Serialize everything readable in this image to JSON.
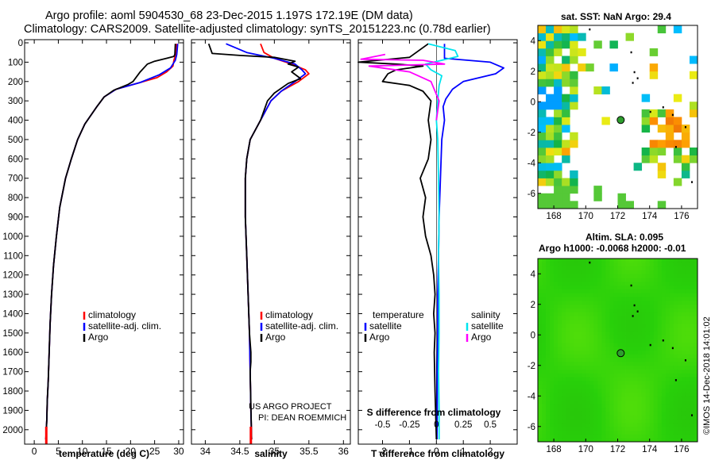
{
  "title_line1": "Argo profile: aoml 5904530_68 23-Dec-2015 1.197S 172.19E (DM data)",
  "title_line2": "Climatology: CARS2009. Satellite-adjusted climatology: synTS_20151223.nc (0.78d earlier)",
  "sst_map_title": "sat. SST: NaN Argo: 29.4",
  "sla_map_title_1": "Altim. SLA: 0.095",
  "sla_map_title_2": "Argo h1000: -0.0068 h2000: -0.01",
  "credit_1": "US ARGO PROJECT",
  "credit_2": "PI: DEAN ROEMMICH",
  "timestamp": "©IMOS 14-Dec-2018 14:01:02",
  "colors": {
    "climatology": "#ff0000",
    "satellite": "#0000ff",
    "argo": "#000000",
    "salinity_satellite": "#00e5ee",
    "salinity_argo": "#ff00ff",
    "profile_marker": "#2e9e2e"
  },
  "chart_data": [
    {
      "type": "line",
      "xlabel": "temperature (deg C)",
      "xlim": [
        -2,
        31
      ],
      "xticks": [
        0,
        5,
        10,
        15,
        20,
        25,
        30
      ],
      "ylim": [
        0,
        2050
      ],
      "yticks": [
        0,
        100,
        200,
        300,
        400,
        500,
        600,
        700,
        800,
        900,
        1000,
        1100,
        1200,
        1300,
        1400,
        1500,
        1600,
        1700,
        1800,
        1900,
        2000
      ],
      "legend": [
        "climatology",
        "satellite-adj. clim.",
        "Argo"
      ],
      "series": [
        {
          "name": "climatology",
          "color": "#ff0000",
          "x": [
            29.6,
            29.4,
            29.0,
            28.8,
            27.5,
            25.5,
            22.0,
            17.0,
            14.5,
            13.0,
            10.5,
            9.0,
            7.7,
            6.5,
            5.3,
            4.6,
            4.0,
            3.6,
            3.3,
            3.1,
            2.9,
            2.7,
            2.6,
            2.5,
            2.4
          ],
          "y": [
            5,
            60,
            90,
            120,
            150,
            180,
            205,
            240,
            280,
            330,
            420,
            500,
            600,
            700,
            850,
            1000,
            1150,
            1300,
            1450,
            1600,
            1750,
            1850,
            1950,
            2000,
            2050
          ]
        },
        {
          "name": "satellite-adj. clim.",
          "color": "#0000ff",
          "x": [
            29.8,
            29.6,
            29.3,
            28.3,
            26.0,
            22.0,
            17.0,
            14.5,
            13.0,
            10.5,
            9.0,
            7.7,
            6.5,
            5.3,
            4.6,
            4.0,
            3.6,
            3.3,
            3.1,
            2.9,
            2.7,
            2.6,
            2.5,
            2.4
          ],
          "y": [
            5,
            60,
            90,
            130,
            165,
            205,
            240,
            280,
            330,
            420,
            500,
            600,
            700,
            850,
            1000,
            1150,
            1300,
            1450,
            1600,
            1750,
            1850,
            1950,
            2000,
            2050
          ]
        },
        {
          "name": "Argo",
          "color": "#000000",
          "x": [
            29.3,
            29.2,
            29.0,
            27.5,
            25.0,
            23.5,
            22.0,
            20.5,
            19.5,
            18.5,
            16.5,
            14.5,
            13.0,
            10.5,
            9.0,
            7.7,
            6.5,
            5.3,
            4.6,
            4.0,
            3.6,
            3.3,
            3.1,
            2.9,
            2.7,
            2.6,
            2.5,
            2.4
          ],
          "y": [
            5,
            60,
            70,
            80,
            95,
            110,
            150,
            200,
            215,
            225,
            245,
            280,
            330,
            420,
            500,
            600,
            700,
            850,
            1000,
            1150,
            1300,
            1450,
            1600,
            1750,
            1850,
            1950,
            2000,
            2050
          ]
        }
      ]
    },
    {
      "type": "line",
      "xlabel": "salinity",
      "xlim": [
        33.8,
        36.1
      ],
      "xticks": [
        34,
        34.5,
        35,
        35.5,
        36
      ],
      "ylim": [
        0,
        2050
      ],
      "legend": [
        "climatology",
        "satellite-adj. clim.",
        "Argo"
      ],
      "series": [
        {
          "name": "climatology",
          "color": "#ff0000",
          "x": [
            34.8,
            34.85,
            35.0,
            35.25,
            35.45,
            35.5,
            35.35,
            35.1,
            34.95,
            34.8,
            34.65,
            34.6,
            34.58,
            34.58,
            34.6,
            34.62,
            34.64,
            34.65,
            34.66,
            34.67
          ],
          "y": [
            5,
            50,
            80,
            110,
            140,
            160,
            200,
            250,
            300,
            400,
            500,
            600,
            700,
            900,
            1100,
            1300,
            1500,
            1700,
            1900,
            2050
          ]
        },
        {
          "name": "satellite-adj. clim.",
          "color": "#0000ff",
          "x": [
            34.3,
            34.6,
            35.0,
            35.3,
            35.4,
            35.45,
            35.3,
            35.1,
            34.95,
            34.8,
            34.65,
            34.6,
            34.58,
            34.58,
            34.6,
            34.62,
            34.64,
            34.65,
            34.66,
            34.67
          ],
          "y": [
            5,
            50,
            80,
            110,
            140,
            160,
            200,
            250,
            300,
            400,
            500,
            600,
            700,
            900,
            1100,
            1300,
            1500,
            1700,
            1900,
            2050
          ]
        },
        {
          "name": "Argo",
          "color": "#000000",
          "x": [
            34.05,
            34.1,
            34.5,
            35.0,
            35.3,
            35.2,
            35.35,
            35.25,
            35.38,
            35.2,
            35.0,
            34.9,
            34.8,
            34.65,
            34.6,
            34.58,
            34.58,
            34.6,
            34.62,
            34.64,
            34.66,
            34.66,
            34.65,
            34.67
          ],
          "y": [
            5,
            55,
            65,
            75,
            95,
            110,
            125,
            150,
            185,
            210,
            260,
            300,
            400,
            500,
            600,
            700,
            900,
            1100,
            1300,
            1500,
            1600,
            1650,
            1700,
            2050
          ]
        }
      ]
    },
    {
      "type": "line",
      "xlabel": "T difference from climatology",
      "xlabel_top": "S difference from climatology",
      "xlim": [
        -2.9,
        3.0
      ],
      "xticks": [
        -2,
        -1,
        0,
        1,
        2
      ],
      "xticks_top": [
        "-0.5",
        "-0.25",
        "0",
        "0.25",
        "0.5"
      ],
      "ylim": [
        0,
        2050
      ],
      "legend_temperature": {
        "heading": "temperature",
        "items": [
          "satellite",
          "Argo"
        ]
      },
      "legend_salinity": {
        "heading": "salinity",
        "items": [
          "satellite",
          "Argo"
        ]
      },
      "series": [
        {
          "name": "temperature satellite",
          "color": "#0000ff",
          "x": [
            0.3,
            0.3,
            2.0,
            2.5,
            2.2,
            1.0,
            0.6,
            0.35,
            0.25,
            0.3,
            0.2,
            0.15,
            0.1,
            0.08,
            0.05,
            0.05,
            0.04,
            0.03,
            0.03,
            0.02
          ],
          "y": [
            5,
            80,
            100,
            130,
            160,
            200,
            240,
            290,
            330,
            400,
            500,
            700,
            900,
            1100,
            1300,
            1500,
            1600,
            1700,
            1900,
            2050
          ]
        },
        {
          "name": "temperature Argo",
          "color": "#000000",
          "x": [
            -0.3,
            -1.0,
            -2.9,
            -1.5,
            -0.5,
            -1.5,
            -1.8,
            -2.0,
            -1.0,
            -0.5,
            -0.2,
            -0.3,
            -0.2,
            -0.3,
            -0.6,
            -0.4,
            -0.5,
            -0.4,
            -0.2,
            -0.1,
            -0.05,
            -0.1,
            -0.05,
            -0.08,
            -0.05,
            0.0
          ],
          "y": [
            5,
            75,
            100,
            110,
            120,
            140,
            160,
            200,
            220,
            250,
            300,
            400,
            500,
            600,
            700,
            800,
            900,
            1000,
            1100,
            1200,
            1300,
            1400,
            1500,
            1600,
            1800,
            2050
          ]
        },
        {
          "name": "salinity satellite",
          "color": "#00e5ee",
          "x": [
            -0.3,
            0.7,
            0.8,
            0.2,
            -0.4,
            -0.2,
            0.2,
            0.1,
            0.05,
            0.0,
            0.05,
            0.08,
            0.1,
            0.08,
            0.1,
            0.1,
            0.08,
            0.1,
            0.1
          ],
          "y": [
            5,
            40,
            70,
            90,
            110,
            140,
            170,
            220,
            300,
            400,
            500,
            700,
            900,
            1100,
            1300,
            1500,
            1700,
            1900,
            2050
          ]
        },
        {
          "name": "salinity Argo",
          "color": "#ff00ff",
          "x": [
            -1.9,
            -2.8,
            -0.5,
            0.3,
            -2.5,
            -1.0,
            -0.2,
            0.1,
            0.0
          ],
          "y": [
            60,
            85,
            90,
            110,
            120,
            150,
            200,
            300,
            400
          ]
        }
      ]
    },
    {
      "type": "heatmap",
      "title": "sat. SST: NaN Argo: 29.4",
      "xlim": [
        167,
        177
      ],
      "ylim": [
        -7,
        5
      ],
      "xticks": [
        168,
        170,
        172,
        174,
        176
      ],
      "yticks": [
        4,
        2,
        0,
        -2,
        -4,
        -6
      ],
      "marker": {
        "lon": 172.19,
        "lat": -1.197
      }
    },
    {
      "type": "heatmap",
      "title": "Altim. SLA: 0.095",
      "subtitle": "Argo h1000: -0.0068 h2000: -0.01",
      "xlim": [
        167,
        177
      ],
      "ylim": [
        -7,
        5
      ],
      "xticks": [
        168,
        170,
        172,
        174,
        176
      ],
      "yticks": [
        4,
        2,
        0,
        -2,
        -4,
        -6
      ],
      "marker": {
        "lon": 172.19,
        "lat": -1.197
      }
    }
  ]
}
